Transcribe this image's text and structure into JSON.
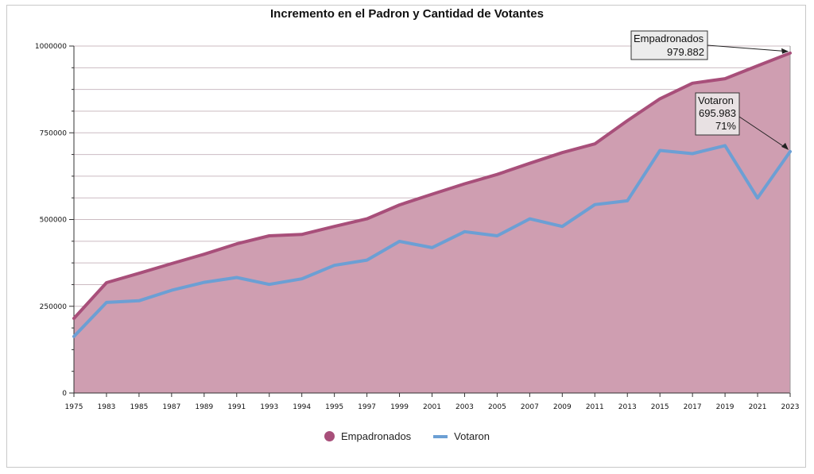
{
  "chart_data": {
    "type": "area",
    "title": "Incremento en el Padron y Cantidad de Votantes",
    "categories": [
      "1975",
      "1983",
      "1985",
      "1987",
      "1989",
      "1991",
      "1993",
      "1994",
      "1995",
      "1997",
      "1999",
      "2001",
      "2003",
      "2005",
      "2007",
      "2009",
      "2011",
      "2013",
      "2015",
      "2017",
      "2019",
      "2021",
      "2023"
    ],
    "series": [
      {
        "name": "Empadronados",
        "color": "#a84f7a",
        "fill": "#cf9eb1",
        "values": [
          215000,
          318000,
          345000,
          373000,
          400000,
          430000,
          453000,
          457000,
          480000,
          502000,
          542000,
          573000,
          603000,
          630000,
          662000,
          693000,
          718000,
          785000,
          848000,
          893000,
          906000,
          943000,
          979882
        ]
      },
      {
        "name": "Votaron",
        "color": "#6c9fd4",
        "values": [
          163000,
          261000,
          266000,
          296000,
          319000,
          333000,
          313000,
          329000,
          368000,
          383000,
          437000,
          419000,
          465000,
          453000,
          502000,
          480000,
          543000,
          554000,
          699000,
          690000,
          713000,
          562000,
          695983
        ]
      }
    ],
    "ylim": [
      0,
      1000000
    ],
    "yticks": [
      "0",
      "250000",
      "500000",
      "750000",
      "1000000"
    ],
    "grid": true,
    "legend_position": "bottom",
    "annotations": [
      {
        "id": "emp",
        "lines": [
          "Empadronados",
          "979.882"
        ]
      },
      {
        "id": "vot",
        "lines": [
          "Votaron",
          "695.983",
          "71%"
        ]
      }
    ]
  }
}
